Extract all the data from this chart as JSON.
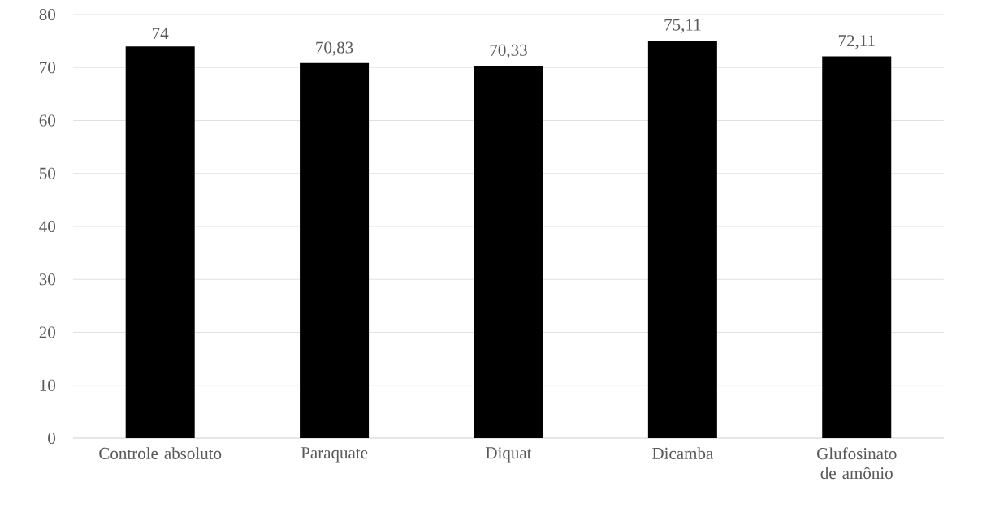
{
  "chart_data": {
    "type": "bar",
    "categories": [
      "Controle absoluto",
      "Paraquate",
      "Diquat",
      "Dicamba",
      "Glufosinato de amônio"
    ],
    "values": [
      74,
      70.83,
      70.33,
      75.11,
      72.11
    ],
    "value_labels": [
      "74",
      "70,83",
      "70,33",
      "75,11",
      "72,11"
    ],
    "color": "#000000",
    "ylim": [
      0,
      80
    ],
    "yticks": [
      0,
      10,
      20,
      30,
      40,
      50,
      60,
      70,
      80
    ],
    "grid": "y"
  }
}
